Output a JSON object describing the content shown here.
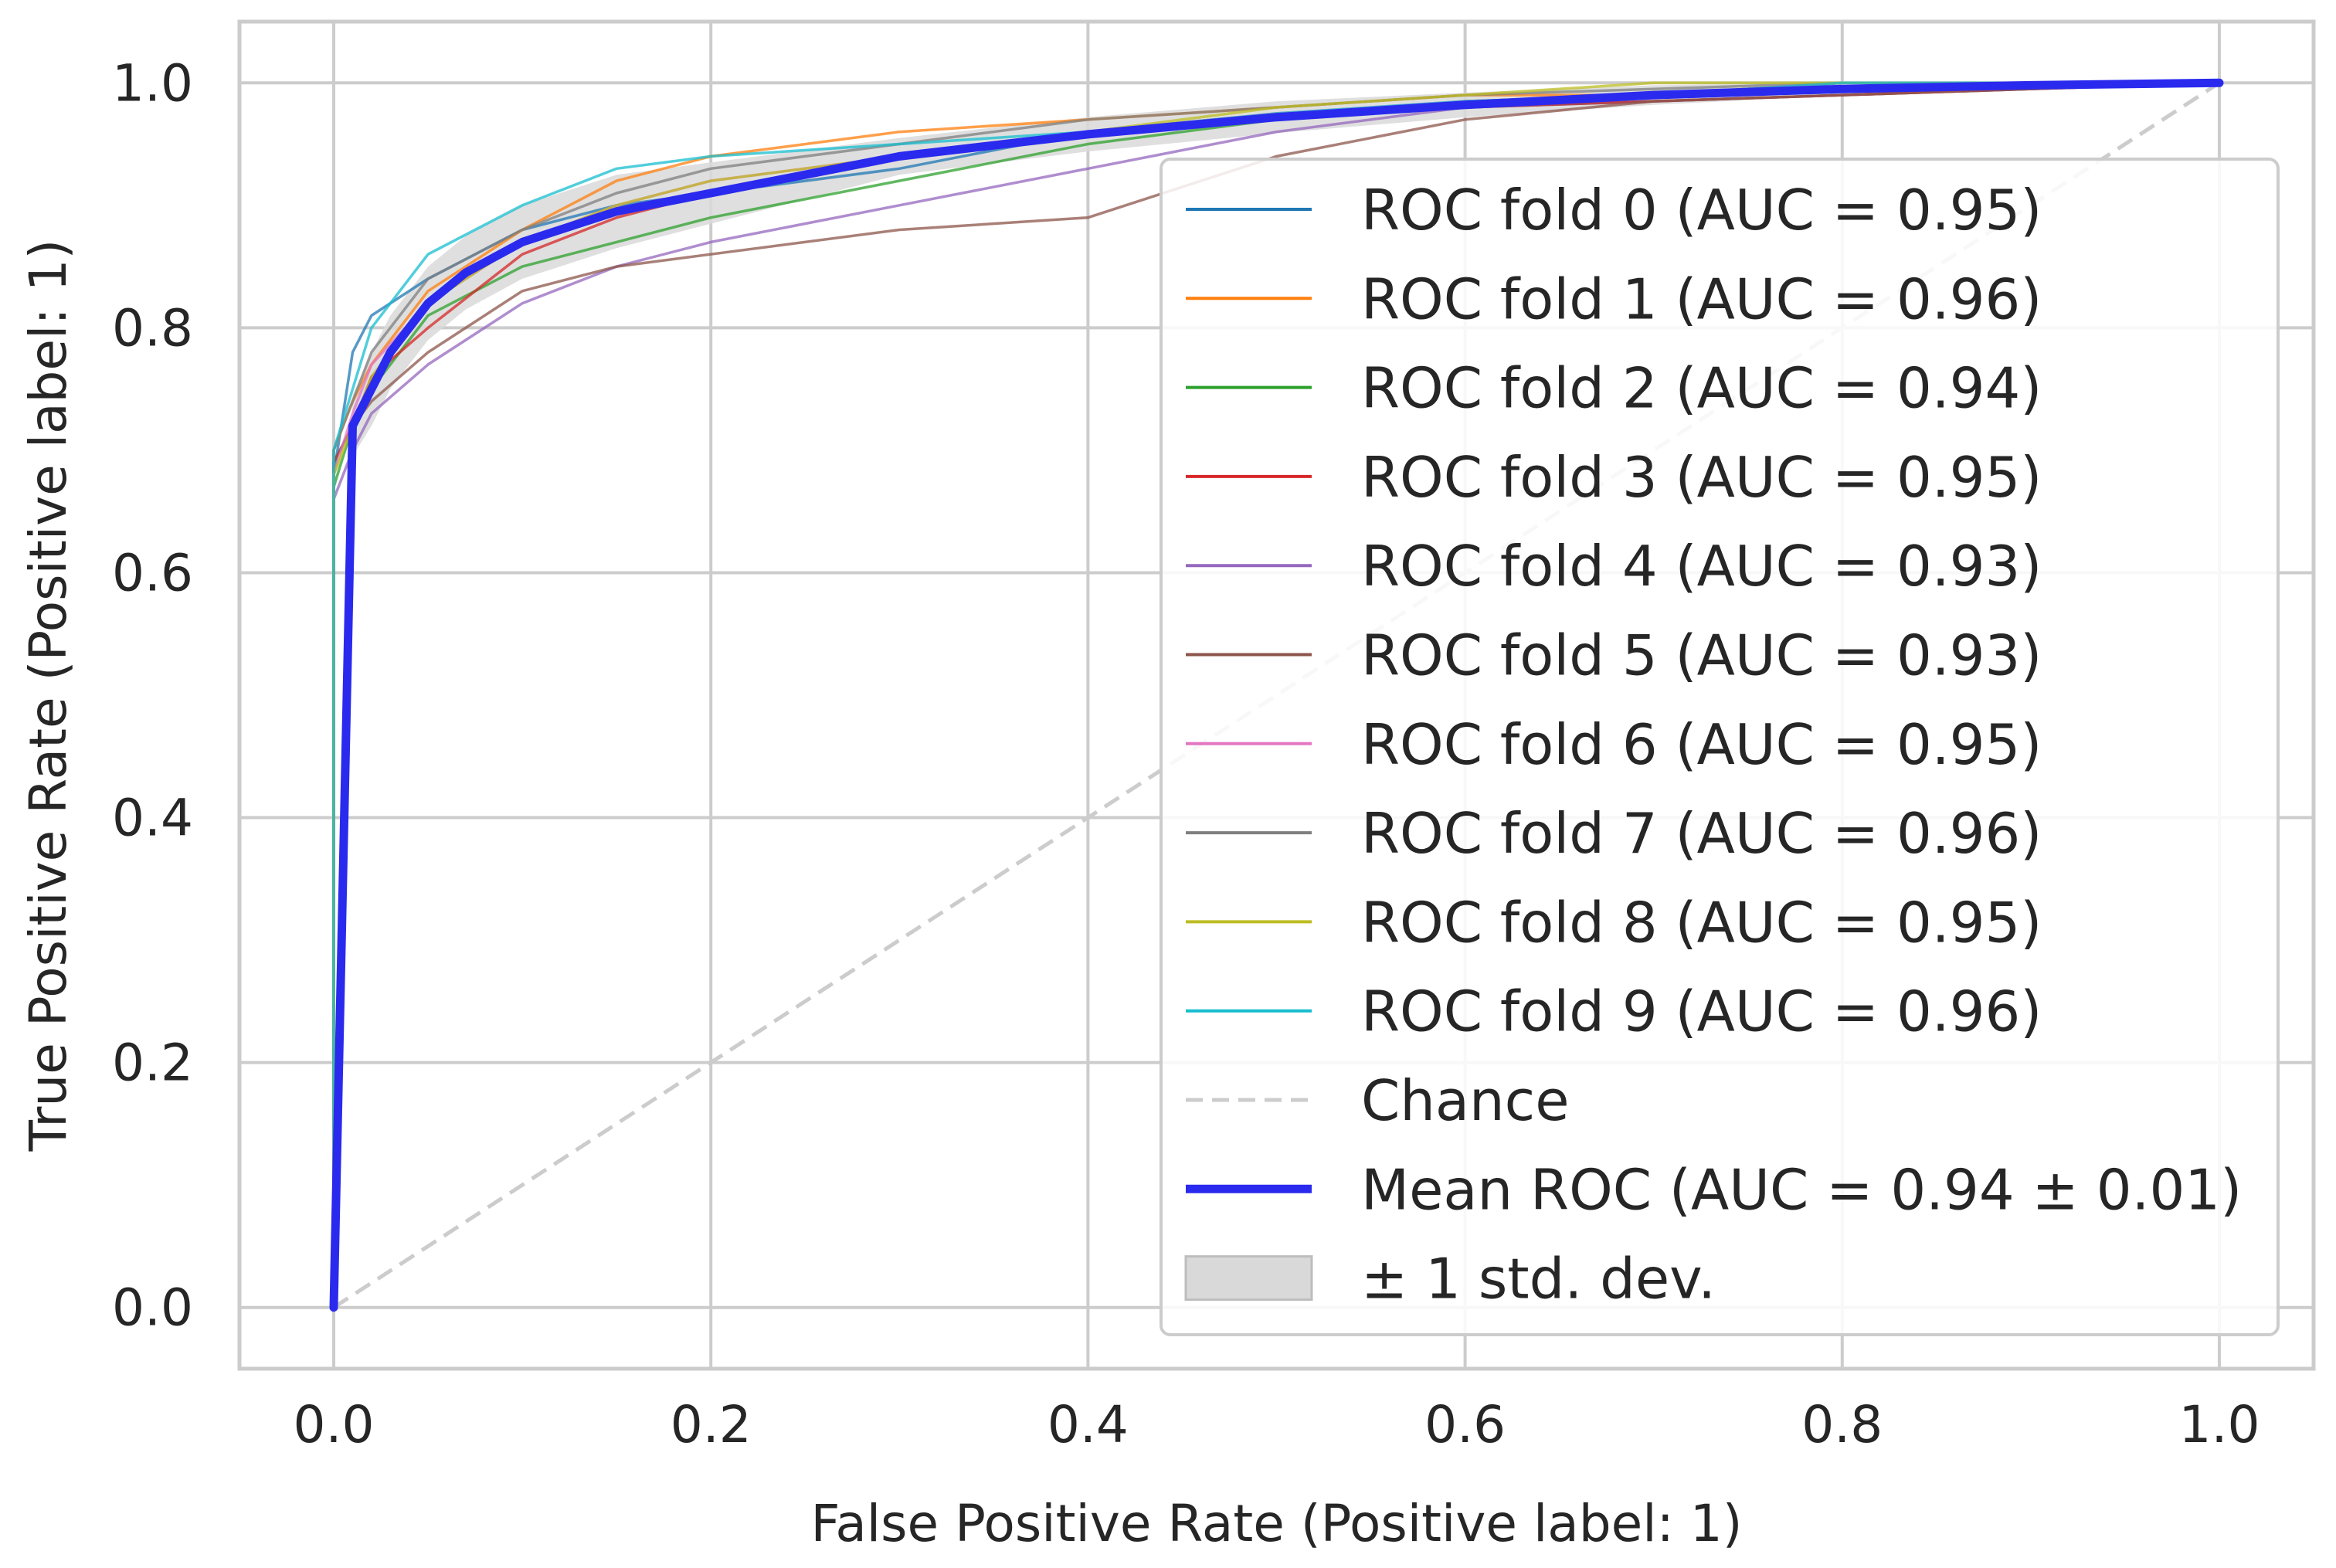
{
  "chart_data": {
    "type": "line",
    "title": "",
    "xlabel": "False Positive Rate (Positive label: 1)",
    "ylabel": "True Positive Rate (Positive label: 1)",
    "xlim": [
      -0.05,
      1.05
    ],
    "ylim": [
      -0.05,
      1.05
    ],
    "grid": true,
    "x_ticks": [
      0.0,
      0.2,
      0.4,
      0.6,
      0.8,
      1.0
    ],
    "x_tick_labels": [
      "0.0",
      "0.2",
      "0.4",
      "0.6",
      "0.8",
      "1.0"
    ],
    "y_ticks": [
      0.0,
      0.2,
      0.4,
      0.6,
      0.8,
      1.0
    ],
    "y_tick_labels": [
      "0.0",
      "0.2",
      "0.4",
      "0.6",
      "0.8",
      "1.0"
    ],
    "legend_position": "center-right",
    "series": [
      {
        "name": "ROC fold 0 (AUC = 0.95)",
        "color": "#1f77b4",
        "x": [
          0,
          0,
          0.01,
          0.02,
          0.05,
          0.1,
          0.15,
          0.2,
          0.3,
          0.4,
          0.5,
          0.6,
          0.7,
          0.8,
          1.0
        ],
        "y": [
          0,
          0.68,
          0.78,
          0.81,
          0.84,
          0.88,
          0.9,
          0.91,
          0.93,
          0.96,
          0.97,
          0.98,
          0.985,
          0.99,
          1.0
        ]
      },
      {
        "name": "ROC fold 1 (AUC = 0.96)",
        "color": "#ff7f0e",
        "x": [
          0,
          0,
          0.01,
          0.02,
          0.05,
          0.1,
          0.15,
          0.2,
          0.3,
          0.4,
          0.5,
          0.6,
          0.7,
          0.8,
          1.0
        ],
        "y": [
          0,
          0.7,
          0.74,
          0.77,
          0.83,
          0.88,
          0.92,
          0.94,
          0.96,
          0.97,
          0.98,
          0.99,
          0.99,
          1.0,
          1.0
        ]
      },
      {
        "name": "ROC fold 2 (AUC = 0.94)",
        "color": "#2ca02c",
        "x": [
          0,
          0,
          0.01,
          0.02,
          0.05,
          0.1,
          0.15,
          0.2,
          0.3,
          0.4,
          0.5,
          0.6,
          0.7,
          0.8,
          1.0
        ],
        "y": [
          0,
          0.67,
          0.72,
          0.75,
          0.81,
          0.85,
          0.87,
          0.89,
          0.92,
          0.95,
          0.97,
          0.985,
          0.99,
          1.0,
          1.0
        ]
      },
      {
        "name": "ROC fold 3 (AUC = 0.95)",
        "color": "#d62728",
        "x": [
          0,
          0,
          0.01,
          0.02,
          0.05,
          0.1,
          0.15,
          0.2,
          0.3,
          0.4,
          0.5,
          0.6,
          0.7,
          0.8,
          1.0
        ],
        "y": [
          0,
          0.69,
          0.72,
          0.76,
          0.8,
          0.86,
          0.89,
          0.91,
          0.94,
          0.96,
          0.975,
          0.98,
          0.985,
          0.99,
          1.0
        ]
      },
      {
        "name": "ROC fold 4 (AUC = 0.93)",
        "color": "#9467bd",
        "x": [
          0,
          0,
          0.01,
          0.02,
          0.05,
          0.1,
          0.15,
          0.2,
          0.3,
          0.4,
          0.5,
          0.6,
          0.7,
          0.8,
          1.0
        ],
        "y": [
          0,
          0.66,
          0.7,
          0.73,
          0.77,
          0.82,
          0.85,
          0.87,
          0.9,
          0.93,
          0.96,
          0.98,
          0.99,
          1.0,
          1.0
        ]
      },
      {
        "name": "ROC fold 5 (AUC = 0.93)",
        "color": "#8c564b",
        "x": [
          0,
          0,
          0.01,
          0.02,
          0.05,
          0.1,
          0.15,
          0.2,
          0.3,
          0.4,
          0.5,
          0.6,
          0.7,
          0.8,
          1.0
        ],
        "y": [
          0,
          0.69,
          0.72,
          0.74,
          0.78,
          0.83,
          0.85,
          0.86,
          0.88,
          0.89,
          0.94,
          0.97,
          0.985,
          0.99,
          1.0
        ]
      },
      {
        "name": "ROC fold 6 (AUC = 0.95)",
        "color": "#e377c2",
        "x": [
          0,
          0,
          0.01,
          0.02,
          0.05,
          0.1,
          0.15,
          0.2,
          0.3,
          0.4,
          0.5,
          0.6,
          0.7,
          0.8,
          1.0
        ],
        "y": [
          0,
          0.68,
          0.73,
          0.77,
          0.82,
          0.87,
          0.9,
          0.92,
          0.94,
          0.96,
          0.975,
          0.985,
          0.99,
          1.0,
          1.0
        ]
      },
      {
        "name": "ROC fold 7 (AUC = 0.96)",
        "color": "#7f7f7f",
        "x": [
          0,
          0,
          0.01,
          0.02,
          0.05,
          0.1,
          0.15,
          0.2,
          0.3,
          0.4,
          0.5,
          0.6,
          0.7,
          0.8,
          1.0
        ],
        "y": [
          0,
          0.7,
          0.74,
          0.78,
          0.84,
          0.88,
          0.91,
          0.93,
          0.95,
          0.97,
          0.98,
          0.99,
          0.995,
          1.0,
          1.0
        ]
      },
      {
        "name": "ROC fold 8 (AUC = 0.95)",
        "color": "#bcbd22",
        "x": [
          0,
          0,
          0.01,
          0.02,
          0.05,
          0.1,
          0.15,
          0.2,
          0.3,
          0.4,
          0.5,
          0.6,
          0.7,
          0.8,
          1.0
        ],
        "y": [
          0,
          0.68,
          0.72,
          0.76,
          0.82,
          0.87,
          0.9,
          0.92,
          0.94,
          0.96,
          0.98,
          0.99,
          1.0,
          1.0,
          1.0
        ]
      },
      {
        "name": "ROC fold 9 (AUC = 0.96)",
        "color": "#17becf",
        "x": [
          0,
          0,
          0.01,
          0.02,
          0.05,
          0.1,
          0.15,
          0.2,
          0.3,
          0.4,
          0.5,
          0.6,
          0.7,
          0.8,
          1.0
        ],
        "y": [
          0,
          0.7,
          0.75,
          0.8,
          0.86,
          0.9,
          0.93,
          0.94,
          0.95,
          0.96,
          0.975,
          0.985,
          0.99,
          1.0,
          1.0
        ]
      }
    ],
    "chance": {
      "name": "Chance",
      "color": "#cccccc",
      "x": [
        0,
        1
      ],
      "y": [
        0,
        1
      ]
    },
    "mean": {
      "name": "Mean ROC (AUC = 0.94 ± 0.01)",
      "color": "#2a2aee",
      "x": [
        0,
        0.01,
        0.02,
        0.03,
        0.05,
        0.07,
        0.1,
        0.15,
        0.2,
        0.25,
        0.3,
        0.4,
        0.5,
        0.6,
        0.7,
        0.8,
        0.9,
        1.0
      ],
      "y": [
        0,
        0.72,
        0.75,
        0.78,
        0.82,
        0.845,
        0.87,
        0.895,
        0.91,
        0.925,
        0.94,
        0.958,
        0.972,
        0.982,
        0.99,
        0.995,
        0.998,
        1.0
      ]
    },
    "std_band": {
      "name": "± 1 std. dev.",
      "color": "#d9d9d9",
      "x": [
        0,
        0.01,
        0.02,
        0.03,
        0.05,
        0.07,
        0.1,
        0.15,
        0.2,
        0.25,
        0.3,
        0.4,
        0.5,
        0.6,
        0.7,
        0.8,
        0.9,
        1.0
      ],
      "upper": [
        0.02,
        0.745,
        0.78,
        0.81,
        0.85,
        0.875,
        0.9,
        0.925,
        0.935,
        0.945,
        0.955,
        0.972,
        0.985,
        0.992,
        0.998,
        1.0,
        1.0,
        1.0
      ],
      "lower": [
        0,
        0.695,
        0.72,
        0.75,
        0.79,
        0.815,
        0.84,
        0.865,
        0.885,
        0.905,
        0.925,
        0.944,
        0.959,
        0.972,
        0.982,
        0.99,
        0.996,
        1.0
      ]
    }
  }
}
